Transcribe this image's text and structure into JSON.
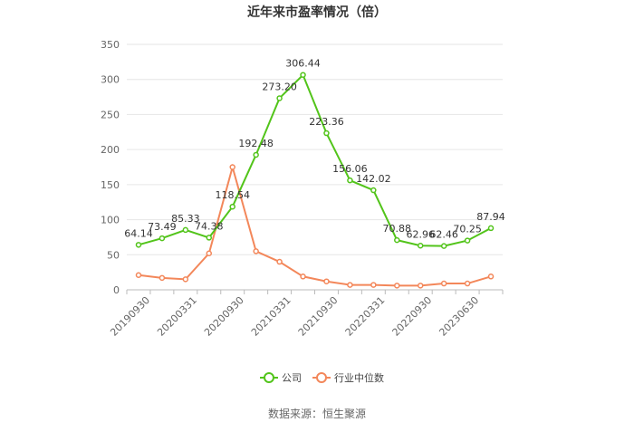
{
  "chart_data": {
    "type": "line",
    "title": "近年来市盈率情况（倍）",
    "source": "数据来源：恒生聚源",
    "ylim": [
      0,
      350
    ],
    "yticks": [
      0,
      50,
      100,
      150,
      200,
      250,
      300,
      350
    ],
    "xtick_labels": [
      "20190930",
      "20200331",
      "20200930",
      "20210331",
      "20210930",
      "20220331",
      "20220930",
      "20230630"
    ],
    "grid": true,
    "legend_position": "bottom",
    "colors": {
      "company": "#52c41a",
      "industry": "#f3875a",
      "grid": "#e6e6e6",
      "axis": "#bbbbbb",
      "text": "#666666"
    },
    "series": [
      {
        "name": "公司",
        "values": [
          64.14,
          73.49,
          85.33,
          74.38,
          118.54,
          192.48,
          273.2,
          306.44,
          223.36,
          156.06,
          142.02,
          70.88,
          62.96,
          62.46,
          70.25,
          87.94
        ],
        "labels": [
          "64.14",
          "73.49",
          "85.33",
          "74.38",
          "118.54",
          "192.48",
          "273.20",
          "306.44",
          "223.36",
          "156.06",
          "142.02",
          "70.88",
          "62.96",
          "62.46",
          "70.25",
          "87.94"
        ]
      },
      {
        "name": "行业中位数",
        "values": [
          21,
          17,
          15,
          52,
          175,
          55,
          40,
          19,
          12,
          7,
          7,
          6,
          6,
          9,
          9,
          19
        ]
      }
    ]
  }
}
